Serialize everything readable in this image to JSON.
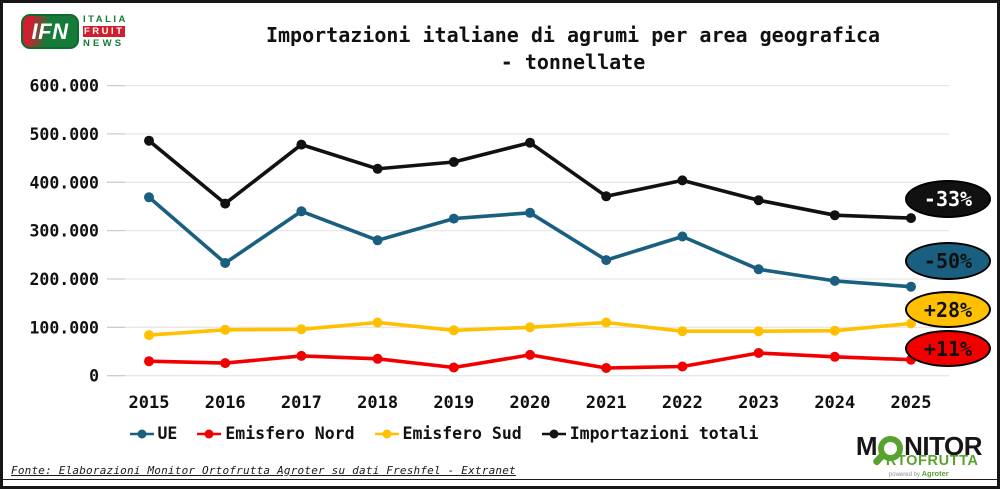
{
  "header": {
    "ifn_logo": {
      "short": "IFN",
      "line1": "ITALIA",
      "line2": "FRUIT",
      "line3": "NEWS"
    },
    "title_line1": "Importazioni italiane di agrumi per area geografica",
    "title_line2": "- tonnellate"
  },
  "chart_data": {
    "type": "line",
    "title": "Importazioni italiane di agrumi per area geografica - tonnellate",
    "xlabel": "",
    "ylabel": "",
    "x_labels": [
      "2015",
      "2016",
      "2017",
      "2018",
      "2019",
      "2020",
      "2021",
      "2022",
      "2023",
      "2024",
      "2025"
    ],
    "series": [
      {
        "name": "UE",
        "color": "#1a5f80",
        "values": [
          369000,
          233000,
          340000,
          280000,
          325000,
          337000,
          239000,
          288000,
          220000,
          196000,
          184000
        ]
      },
      {
        "name": "Emisfero Nord",
        "color": "#f20000",
        "values": [
          30000,
          26000,
          41000,
          35000,
          17000,
          43000,
          16000,
          19000,
          47000,
          39000,
          33000
        ]
      },
      {
        "name": "Emisfero Sud",
        "color": "#ffc000",
        "values": [
          84000,
          95000,
          96000,
          110000,
          94000,
          100000,
          110000,
          92000,
          92000,
          93000,
          108000
        ]
      },
      {
        "name": "Importazioni totali",
        "color": "#111111",
        "values": [
          486000,
          356000,
          478000,
          428000,
          442000,
          482000,
          371000,
          404000,
          363000,
          332000,
          326000
        ]
      }
    ],
    "ylim": [
      0,
      600000
    ],
    "y_ticks": [
      0,
      100000,
      200000,
      300000,
      400000,
      500000,
      600000
    ],
    "y_tick_labels": [
      "0",
      "100.000",
      "200.000",
      "300.000",
      "400.000",
      "500.000",
      "600.000"
    ],
    "grid": true,
    "legend_position": "bottom"
  },
  "badges": [
    {
      "label": "-33%",
      "series": "Importazioni totali",
      "bg": "#111111",
      "text_color": "#ffffff"
    },
    {
      "label": "-50%",
      "series": "UE",
      "bg": "#1a5f80",
      "text_color": "#111111"
    },
    {
      "label": "+28%",
      "series": "Emisfero Sud",
      "bg": "#ffc000",
      "text_color": "#111111"
    },
    {
      "label": "+11%",
      "series": "Emisfero Nord",
      "bg": "#f20000",
      "text_color": "#111111"
    }
  ],
  "footer": {
    "source": "Fonte: Elaborazioni Monitor Ortofrutta Agroter su dati Freshfel - Extranet",
    "monitor_logo": {
      "line1_prefix": "M",
      "line1_suffix": "NITOR",
      "line2": "RTOFRUTTA",
      "powered_by": "powered by",
      "brand": "Agroter"
    }
  }
}
